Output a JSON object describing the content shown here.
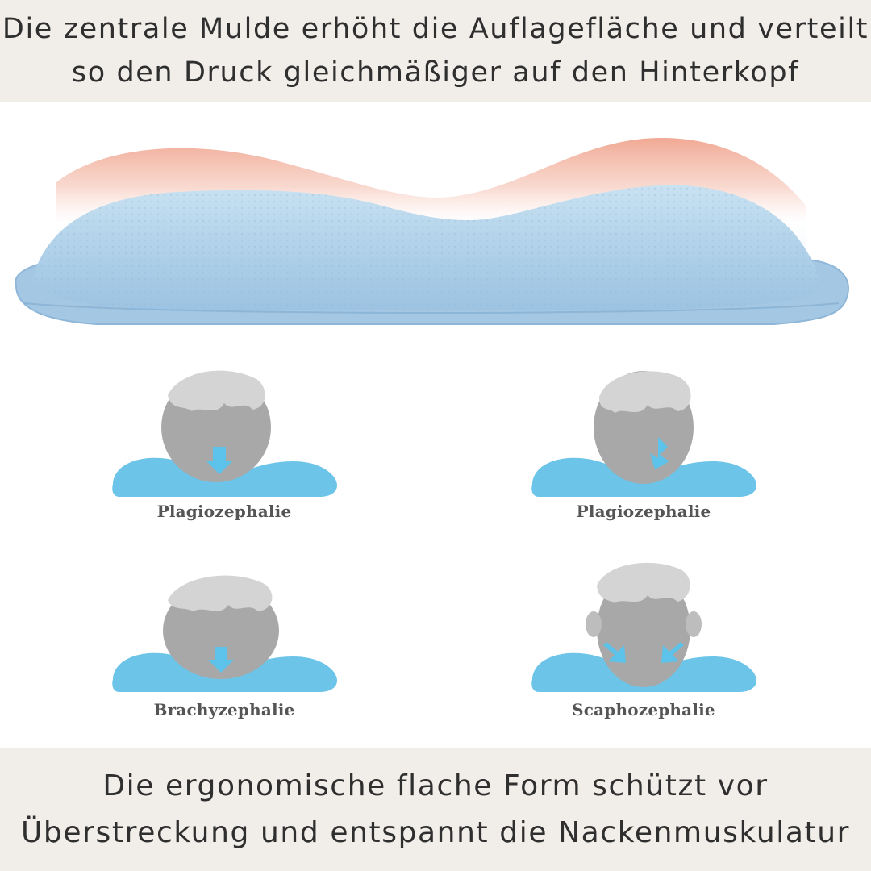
{
  "header": {
    "line1": "Die zentrale Mulde erhöht die Auflagefläche und verteilt",
    "line2": "so den Druck gleichmäßiger auf den Hinterkopf"
  },
  "footer": {
    "line1": "Die ergonomische flache Form schützt vor",
    "line2": "Überstreckung und entspannt die Nackenmuskulatur"
  },
  "diagrams": [
    {
      "label": "Plagiozephalie"
    },
    {
      "label": "Plagiozephalie"
    },
    {
      "label": "Brachyzephalie"
    },
    {
      "label": "Scaphozephalie"
    }
  ],
  "colors": {
    "banner_background": "#f1eee9",
    "pillow_blue": "#a9cbe6",
    "pressure_gradient_top": "#f0a48e",
    "pillow_diagram_blue": "#6cc4e8",
    "head_gray": "#a8a8a8",
    "arrow_blue": "#5ec3ea"
  }
}
